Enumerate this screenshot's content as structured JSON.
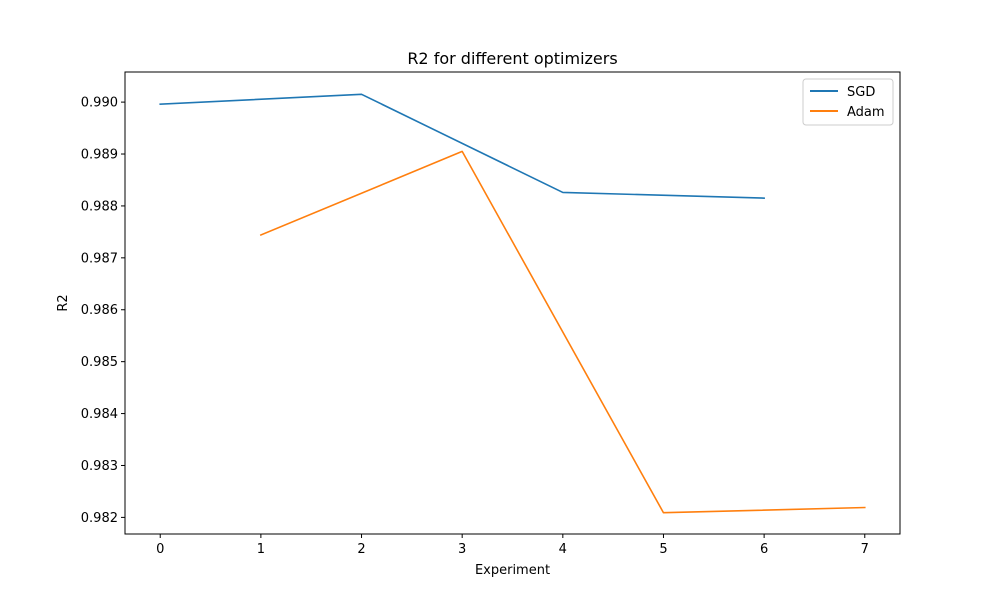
{
  "colors": {
    "series": [
      "#1f77b4",
      "#ff7f0e"
    ],
    "axis": "#000000",
    "background": "#ffffff",
    "legend_border": "#cccccc"
  },
  "chart_data": {
    "type": "line",
    "title": "R2 for different optimizers",
    "xlabel": "Experiment",
    "ylabel": "R2",
    "xlim": [
      -0.35,
      7.35
    ],
    "ylim": [
      0.98168,
      0.99058
    ],
    "xticks": [
      0,
      1,
      2,
      3,
      4,
      5,
      6,
      7
    ],
    "xtick_labels": [
      "0",
      "1",
      "2",
      "3",
      "4",
      "5",
      "6",
      "7"
    ],
    "yticks": [
      0.982,
      0.983,
      0.984,
      0.985,
      0.986,
      0.987,
      0.988,
      0.989,
      0.99
    ],
    "ytick_labels": [
      "0.982",
      "0.983",
      "0.984",
      "0.985",
      "0.986",
      "0.987",
      "0.988",
      "0.989",
      "0.990"
    ],
    "grid": false,
    "legend_position": "top-right",
    "series": [
      {
        "name": "SGD",
        "x": [
          0,
          2,
          4,
          6
        ],
        "values": [
          0.98996,
          0.99015,
          0.98826,
          0.98815
        ]
      },
      {
        "name": "Adam",
        "x": [
          1,
          3,
          5,
          7
        ],
        "values": [
          0.98744,
          0.98905,
          0.98209,
          0.98219
        ]
      }
    ]
  }
}
